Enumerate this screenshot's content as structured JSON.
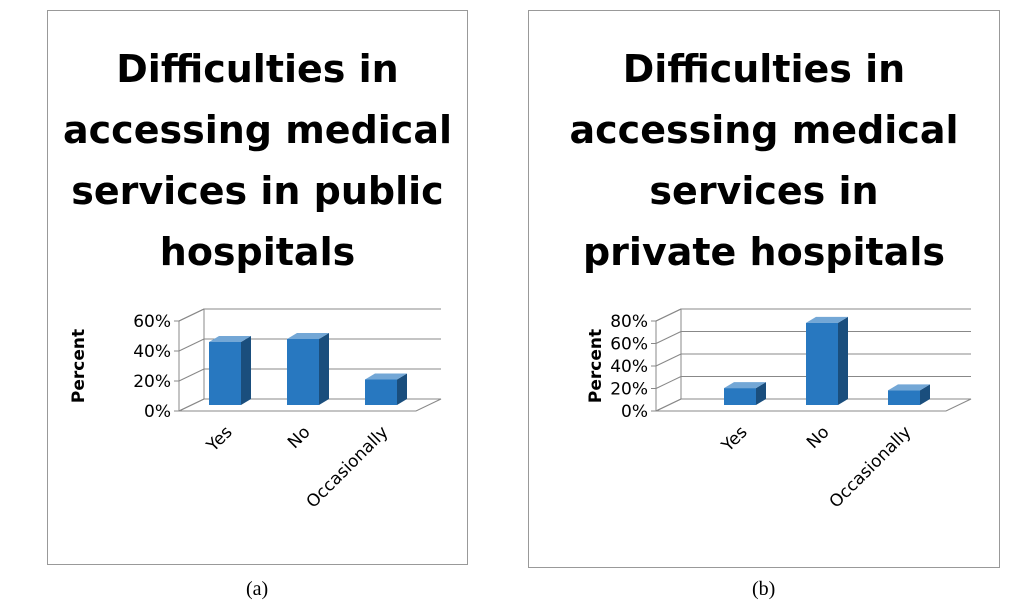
{
  "chart_data": [
    {
      "type": "bar3d",
      "title": "Difficulties in accessing medical services in public hospitals",
      "y_label": "Percent",
      "categories": [
        "Yes",
        "No",
        "Occasionally"
      ],
      "values": [
        42,
        44,
        17
      ],
      "color": "#2878c0",
      "ylim": [
        0,
        60
      ],
      "yticks": [
        {
          "value": 0,
          "label": "0%"
        },
        {
          "value": 20,
          "label": "20%"
        },
        {
          "value": 40,
          "label": "40%"
        },
        {
          "value": 60,
          "label": "60%"
        }
      ],
      "grid": true,
      "caption": "(a)"
    },
    {
      "type": "bar3d",
      "title": "Difficulties in accessing medical services in private hospitals",
      "y_label": "Percent",
      "categories": [
        "Yes",
        "No",
        "Occasionally"
      ],
      "values": [
        15,
        73,
        13
      ],
      "color": "#2878c0",
      "ylim": [
        0,
        80
      ],
      "yticks": [
        {
          "value": 0,
          "label": "0%"
        },
        {
          "value": 20,
          "label": "20%"
        },
        {
          "value": 40,
          "label": "40%"
        },
        {
          "value": 60,
          "label": "60%"
        },
        {
          "value": 80,
          "label": "80%"
        }
      ],
      "grid": true,
      "caption": "(b)"
    }
  ]
}
